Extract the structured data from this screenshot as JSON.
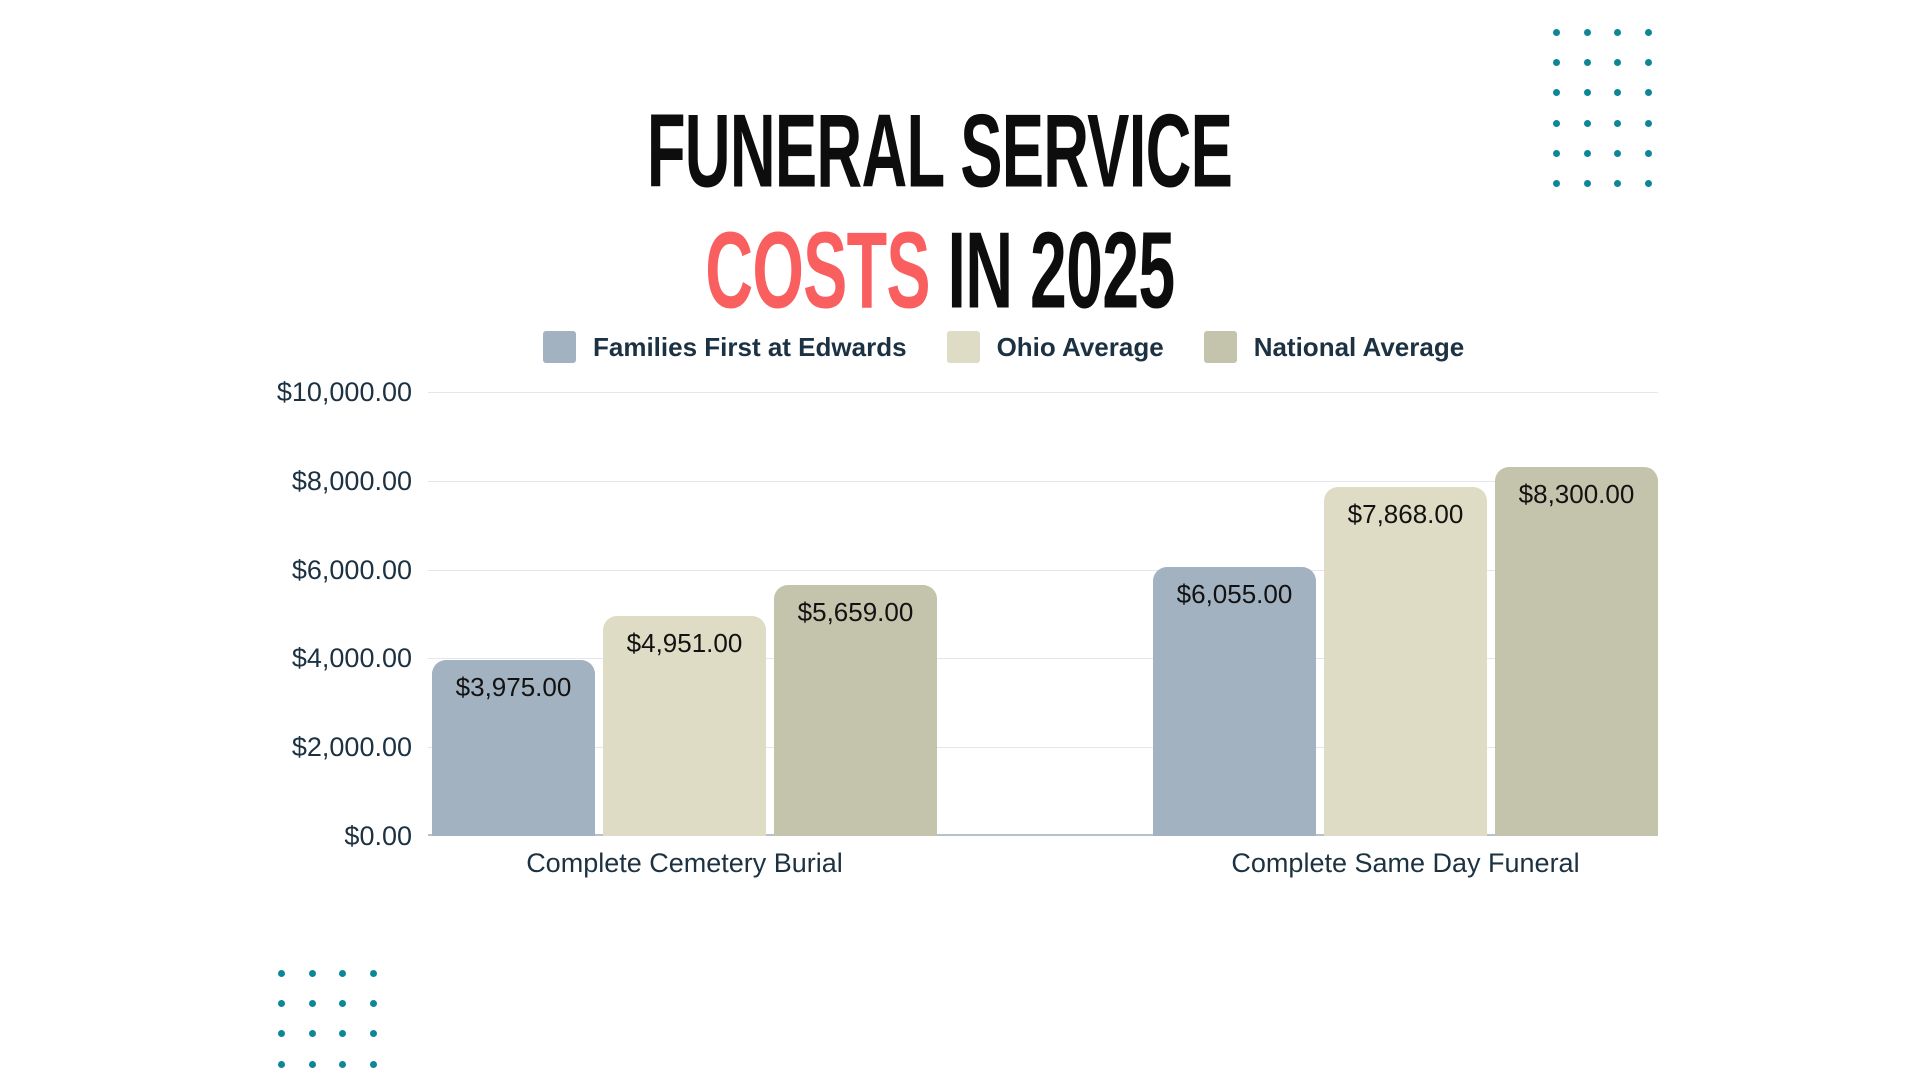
{
  "title": {
    "line1": "FUNERAL SERVICE",
    "line2_accent": "COSTS",
    "line2_rest": " IN 2025",
    "accent_color": "#fa5f5f",
    "text_color": "#0d0d0d"
  },
  "legend": {
    "items": [
      {
        "label": "Families First at Edwards",
        "color": "#a3b2c0"
      },
      {
        "label": "Ohio Average",
        "color": "#dedcc5"
      },
      {
        "label": "National Average",
        "color": "#c4c3ac"
      }
    ]
  },
  "chart_data": {
    "type": "bar",
    "title": "Funeral Service Costs in 2025",
    "categories": [
      "Complete Cemetery Burial",
      "Complete Same Day Funeral"
    ],
    "series": [
      {
        "name": "Families First at Edwards",
        "color": "#a3b2c0",
        "values": [
          3975,
          6055
        ],
        "labels": [
          "$3,975.00",
          "$6,055.00"
        ]
      },
      {
        "name": "Ohio Average",
        "color": "#dedcc5",
        "values": [
          4951,
          7868
        ],
        "labels": [
          "$4,951.00",
          "$7,868.00"
        ]
      },
      {
        "name": "National Average",
        "color": "#c4c3ac",
        "values": [
          5659,
          8300
        ],
        "labels": [
          "$5,659.00",
          "$8,300.00"
        ]
      }
    ],
    "ylim": [
      0,
      10000
    ],
    "yticks": [
      {
        "value": 10000,
        "label": "$10,000.00"
      },
      {
        "value": 8000,
        "label": "$8,000.00"
      },
      {
        "value": 6000,
        "label": "$6,000.00"
      },
      {
        "value": 4000,
        "label": "$4,000.00"
      },
      {
        "value": 2000,
        "label": "$2,000.00"
      },
      {
        "value": 0,
        "label": "$0.00"
      }
    ],
    "grid": true,
    "legend_position": "top"
  },
  "colors": {
    "text_navy": "#1c3242",
    "gridline": "#e4e6eb",
    "baseline": "#b9c0cc",
    "dot_teal": "#0d8795",
    "bar_label": "#121212"
  },
  "decorations": {
    "top_right_dots": {
      "rows": 6,
      "cols": 4
    },
    "bottom_left_dots": {
      "rows": 4,
      "cols": 4
    }
  }
}
